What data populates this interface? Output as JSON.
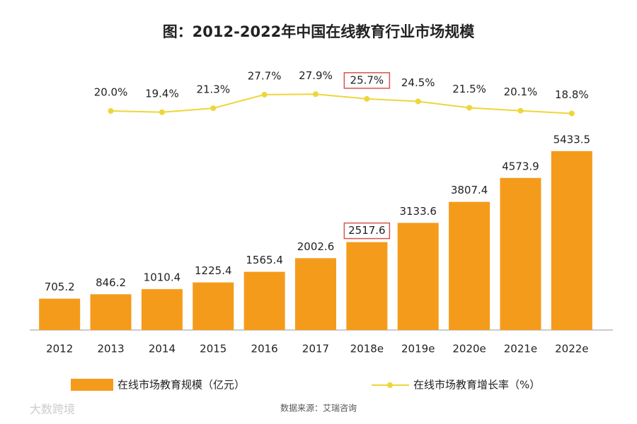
{
  "chart_data": {
    "type": "bar",
    "title": "图：2012-2022年中国在线教育行业市场规模",
    "categories": [
      "2012",
      "2013",
      "2014",
      "2015",
      "2016",
      "2017",
      "2018e",
      "2019e",
      "2020e",
      "2021e",
      "2022e"
    ],
    "series": [
      {
        "name": "在线市场教育规模（亿元）",
        "color": "#f59b1c",
        "values": [
          705.2,
          846.2,
          1010.4,
          1225.4,
          1565.4,
          2002.6,
          2517.6,
          3133.6,
          3807.4,
          4573.9,
          5433.5
        ]
      },
      {
        "name": "在线市场教育增长率（%）",
        "color": "#eed63a",
        "type": "line",
        "axis": "y2",
        "values": [
          null,
          20.0,
          19.4,
          21.3,
          27.7,
          27.9,
          25.7,
          24.5,
          21.5,
          20.1,
          18.8
        ],
        "value_labels": [
          null,
          "20.0%",
          "19.4%",
          "21.3%",
          "27.7%",
          "27.9%",
          "25.7%",
          "24.5%",
          "21.5%",
          "20.1%",
          "18.8%"
        ]
      }
    ],
    "ylim": [
      -300,
      6200
    ],
    "y2lim": [
      14,
      39
    ],
    "highlight": "2018e",
    "source": "数据来源：艾瑞咨询",
    "watermark": "大数跨境"
  }
}
